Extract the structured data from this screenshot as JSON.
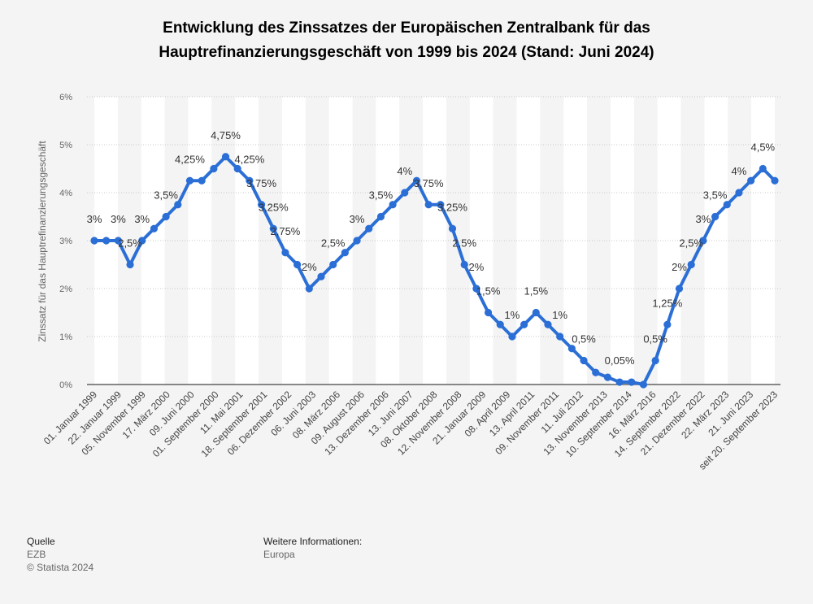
{
  "title_lines": [
    "Entwicklung des Zinssatzes der Europäischen Zentralbank für das",
    "Hauptrefinanzierungsgeschäft von 1999 bis 2024 (Stand: Juni 2024)"
  ],
  "footer": {
    "source_label": "Quelle",
    "source_value": "EZB",
    "copyright": "© Statista 2024",
    "info_label": "Weitere Informationen:",
    "info_value": "Europa"
  },
  "chart_data": {
    "type": "line",
    "ylabel": "Zinssatz für das Hauptrefinanzierungsgeschäft",
    "xlabel": "",
    "ylim": [
      0,
      6
    ],
    "y_ticks": [
      0,
      1,
      2,
      3,
      4,
      5,
      6
    ],
    "y_tick_labels": [
      "0%",
      "1%",
      "2%",
      "3%",
      "4%",
      "5%",
      "6%"
    ],
    "grid": true,
    "series_color": "#2b6fd6",
    "values": [
      3,
      3,
      3,
      2.5,
      3,
      3.25,
      3.5,
      3.75,
      4.25,
      4.25,
      4.5,
      4.75,
      4.5,
      4.25,
      3.75,
      3.25,
      2.75,
      2.5,
      2,
      2.25,
      2.5,
      2.75,
      3,
      3.25,
      3.5,
      3.75,
      4,
      4.25,
      3.75,
      3.75,
      3.25,
      2.5,
      2,
      1.5,
      1.25,
      1,
      1.25,
      1.5,
      1.25,
      1,
      0.75,
      0.5,
      0.25,
      0.15,
      0.05,
      0.05,
      0,
      0.5,
      1.25,
      2,
      2.5,
      3,
      3.5,
      3.75,
      4,
      4.25,
      4.5,
      4.25
    ],
    "value_labels": [
      "3%",
      "",
      "3%",
      "2,5%",
      "3%",
      "",
      "3,5%",
      "",
      "4,25%",
      "",
      "",
      "4,75%",
      "",
      "4,25%",
      "3,75%",
      "3,25%",
      "2,75%",
      "",
      "2%",
      "",
      "2,5%",
      "",
      "3%",
      "",
      "3,5%",
      "",
      "4%",
      "",
      "3,75%",
      "",
      "3,25%",
      "2,5%",
      "2%",
      "1,5%",
      "",
      "1%",
      "",
      "1,5%",
      "",
      "1%",
      "",
      "0,5%",
      "",
      "",
      "0,05%",
      "",
      "",
      "0,5%",
      "1,25%",
      "2%",
      "2,5%",
      "3%",
      "3,5%",
      "",
      "4%",
      "",
      "4,5%",
      ""
    ],
    "x_tick_labels": [
      "01. Januar 1999",
      "22. Januar 1999",
      "05. November 1999",
      "17. März 2000",
      "09. Juni 2000",
      "01. September 2000",
      "11. Mai 2001",
      "18. September 2001",
      "06. Dezember 2002",
      "06. Juni 2003",
      "08. März 2006",
      "09. August 2006",
      "13. Dezember 2006",
      "13. Juni 2007",
      "08. Oktober 2008",
      "12. November 2008",
      "21. Januar 2009",
      "08. April 2009",
      "13. April 2011",
      "09. November 2011",
      "11. Juli 2012",
      "13. November 2013",
      "10. September 2014",
      "16. März 2016",
      "14. September 2022",
      "21. Dezember 2022",
      "22. März 2023",
      "21. Juni 2023",
      "seit 20. September 2023"
    ]
  }
}
